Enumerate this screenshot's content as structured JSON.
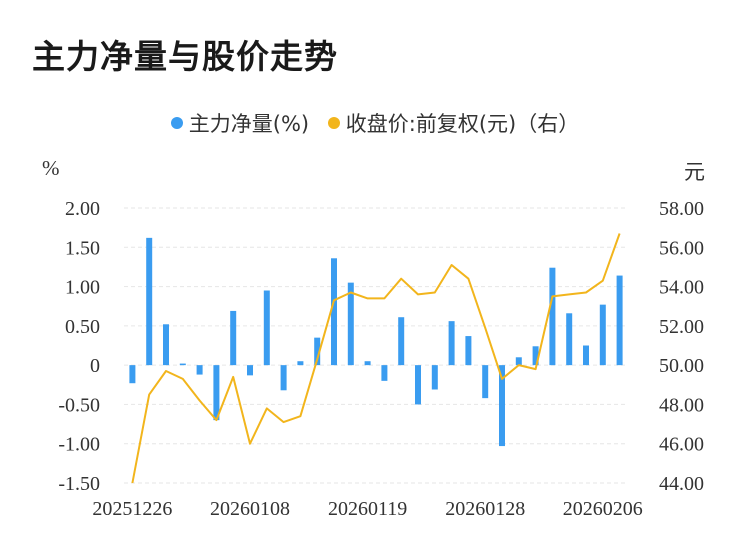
{
  "title": "主力净量与股价走势",
  "legend": {
    "bar_label": "主力净量(%)",
    "line_label": "收盘价:前复权(元)（右）"
  },
  "units": {
    "left": "%",
    "right": "元"
  },
  "colors": {
    "bar": "#3a9cf0",
    "line": "#f2b51c",
    "grid": "#e6e6e6",
    "text": "#333333"
  },
  "chart_data": {
    "type": "bar+line",
    "left_axis": {
      "ticks": [
        "2.00",
        "1.50",
        "1.00",
        "0.50",
        "0",
        "-0.50",
        "-1.00",
        "-1.50"
      ],
      "ylim": [
        -1.5,
        2.0
      ]
    },
    "right_axis": {
      "ticks": [
        "58.00",
        "56.00",
        "54.00",
        "52.00",
        "50.00",
        "48.00",
        "46.00",
        "44.00"
      ],
      "ylim": [
        44.0,
        58.0
      ]
    },
    "x_tick_labels": [
      "20251226",
      "20260108",
      "20260119",
      "20260128",
      "20260206"
    ],
    "grid": true,
    "series": [
      {
        "name": "主力净量(%)",
        "type": "bar",
        "axis": "left",
        "values": [
          -0.23,
          1.62,
          0.52,
          0.02,
          -0.12,
          -0.7,
          0.69,
          -0.13,
          0.95,
          -0.32,
          0.05,
          0.35,
          1.36,
          1.05,
          0.05,
          -0.2,
          0.61,
          -0.5,
          -0.31,
          0.56,
          0.37,
          -0.42,
          -1.03,
          0.1,
          0.24,
          1.24,
          0.66,
          0.25,
          0.77,
          1.14
        ]
      },
      {
        "name": "收盘价:前复权(元)（右）",
        "type": "line",
        "axis": "right",
        "values": [
          44.0,
          48.5,
          49.7,
          49.3,
          48.2,
          47.2,
          49.4,
          46.0,
          47.8,
          47.1,
          47.4,
          50.3,
          53.3,
          53.7,
          53.4,
          53.4,
          54.4,
          53.6,
          53.7,
          55.1,
          54.4,
          51.9,
          49.3,
          50.0,
          49.8,
          53.5,
          53.6,
          53.7,
          54.3,
          56.7
        ]
      }
    ]
  }
}
